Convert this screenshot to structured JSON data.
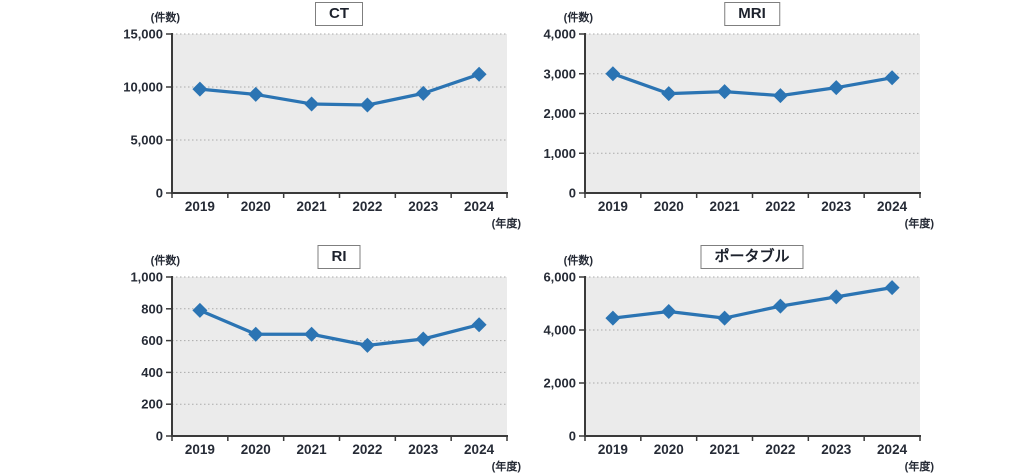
{
  "page": {
    "background": "#ffffff"
  },
  "style": {
    "line_color": "#2b74b3",
    "plot_bg": "#ebebeb",
    "grid_color": "#ababab",
    "axis_color": "#3a3a3a",
    "text_color": "#262b36",
    "title_border": "#7f7f7f"
  },
  "chart_data": [
    {
      "id": "ct",
      "type": "line",
      "title": "CT",
      "y_unit": "(件数)",
      "x_unit": "(年度)",
      "categories": [
        "2019",
        "2020",
        "2021",
        "2022",
        "2023",
        "2024"
      ],
      "values": [
        9800,
        9300,
        8400,
        8300,
        9400,
        11200
      ],
      "ylim": [
        0,
        15000
      ],
      "ytick_step": 5000,
      "grid": true,
      "legend": "none",
      "marker": "diamond"
    },
    {
      "id": "mri",
      "type": "line",
      "title": "MRI",
      "y_unit": "(件数)",
      "x_unit": "(年度)",
      "categories": [
        "2019",
        "2020",
        "2021",
        "2022",
        "2023",
        "2024"
      ],
      "values": [
        3000,
        2500,
        2550,
        2450,
        2650,
        2900
      ],
      "ylim": [
        0,
        4000
      ],
      "ytick_step": 1000,
      "grid": true,
      "legend": "none",
      "marker": "diamond"
    },
    {
      "id": "ri",
      "type": "line",
      "title": "RI",
      "y_unit": "(件数)",
      "x_unit": "(年度)",
      "categories": [
        "2019",
        "2020",
        "2021",
        "2022",
        "2023",
        "2024"
      ],
      "values": [
        790,
        640,
        640,
        570,
        610,
        700
      ],
      "ylim": [
        0,
        1000
      ],
      "ytick_step": 200,
      "grid": true,
      "legend": "none",
      "marker": "diamond"
    },
    {
      "id": "portable",
      "type": "line",
      "title": "ポータブル",
      "y_unit": "(件数)",
      "x_unit": "(年度)",
      "categories": [
        "2019",
        "2020",
        "2021",
        "2022",
        "2023",
        "2024"
      ],
      "values": [
        4450,
        4700,
        4450,
        4900,
        5250,
        5600
      ],
      "ylim": [
        0,
        6000
      ],
      "ytick_step": 2000,
      "grid": true,
      "legend": "none",
      "marker": "diamond"
    }
  ]
}
